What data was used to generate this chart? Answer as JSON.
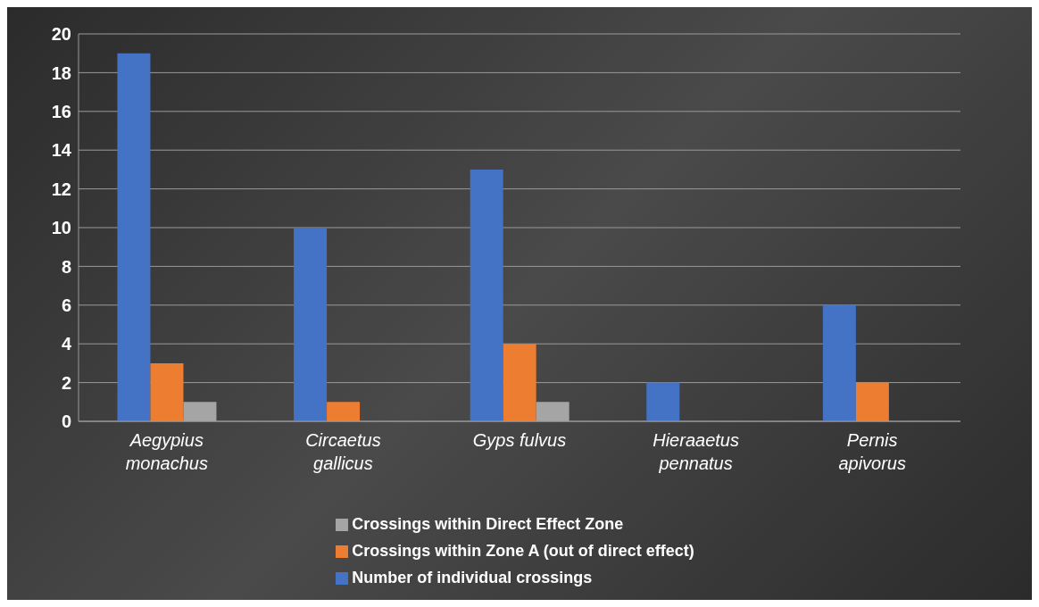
{
  "chart_data": {
    "type": "bar",
    "categories": [
      "Aegypius monachus",
      "Circaetus gallicus",
      "Gyps fulvus",
      "Hieraaetus pennatus",
      "Pernis apivorus"
    ],
    "series": [
      {
        "name": "Number of individual crossings",
        "color": "#4472c4",
        "values": [
          19,
          10,
          13,
          2,
          6
        ]
      },
      {
        "name": "Crossings within Zone A (out of direct effect)",
        "color": "#ed7d31",
        "values": [
          3,
          1,
          4,
          null,
          2
        ]
      },
      {
        "name": "Crossings within Direct Effect Zone",
        "color": "#a5a5a5",
        "values": [
          1,
          null,
          1,
          null,
          null
        ]
      }
    ],
    "ylim": [
      0,
      20
    ],
    "yticks": [
      0,
      2,
      4,
      6,
      8,
      10,
      12,
      14,
      16,
      18,
      20
    ],
    "grid": "y",
    "legend": "bottom"
  }
}
